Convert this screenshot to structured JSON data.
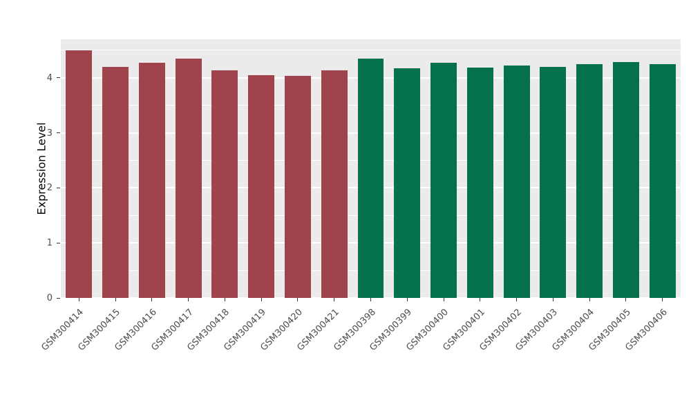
{
  "chart_data": {
    "type": "bar",
    "title": "",
    "xlabel": "",
    "ylabel": "Expression Level",
    "ylim": [
      0,
      4.7
    ],
    "yticks": [
      0,
      1,
      2,
      3,
      4
    ],
    "minor_tick_step": 0.5,
    "grid": true,
    "legend_position": "none",
    "panel_background_color": "#EBEBEB",
    "gridline_color": "#FFFFFF",
    "categories": [
      "GSM300414",
      "GSM300415",
      "GSM300416",
      "GSM300417",
      "GSM300418",
      "GSM300419",
      "GSM300420",
      "GSM300421",
      "GSM300398",
      "GSM300399",
      "GSM300400",
      "GSM300401",
      "GSM300402",
      "GSM300403",
      "GSM300404",
      "GSM300405",
      "GSM300406"
    ],
    "values": [
      4.5,
      4.2,
      4.28,
      4.35,
      4.13,
      4.05,
      4.03,
      4.14,
      4.35,
      4.17,
      4.27,
      4.18,
      4.23,
      4.2,
      4.25,
      4.29,
      4.25
    ],
    "bar_groups": [
      "group-a",
      "group-a",
      "group-a",
      "group-a",
      "group-a",
      "group-a",
      "group-a",
      "group-a",
      "group-b",
      "group-b",
      "group-b",
      "group-b",
      "group-b",
      "group-b",
      "group-b",
      "group-b",
      "group-b"
    ],
    "group_colors": {
      "group-a": "#A0434D",
      "group-b": "#04714B"
    }
  }
}
